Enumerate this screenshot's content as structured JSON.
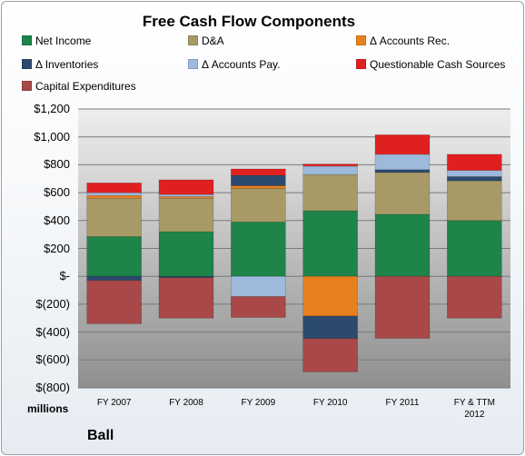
{
  "company": "Ball",
  "units": "millions",
  "chart_data": {
    "type": "bar",
    "stacked": true,
    "title": "Free Cash Flow Components",
    "categories": [
      "FY 2007",
      "FY 2008",
      "FY 2009",
      "FY 2010",
      "FY 2011",
      "FY & TTM 2012"
    ],
    "ylim": [
      -800,
      1200
    ],
    "yticks": [
      1200,
      1000,
      800,
      600,
      400,
      200,
      0,
      -200,
      -400,
      -600,
      -800
    ],
    "ytick_labels": [
      "$1,200",
      "$1,000",
      "$800",
      "$600",
      "$400",
      "$200",
      "$-",
      "$(200)",
      "$(400)",
      "$(600)",
      "$(800)"
    ],
    "grid": true,
    "legend": "top",
    "series": [
      {
        "name": "Net Income",
        "color": "#1e8449",
        "values": [
          285,
          320,
          390,
          470,
          445,
          400
        ]
      },
      {
        "name": "D&A",
        "color": "#a89a66",
        "values": [
          275,
          240,
          240,
          260,
          300,
          285
        ]
      },
      {
        "name": "Δ Accounts Rec.",
        "color": "#e8801f",
        "values": [
          20,
          12,
          20,
          -285,
          0,
          0
        ]
      },
      {
        "name": "Δ Inventories",
        "color": "#2c4a6e",
        "values": [
          -30,
          -10,
          75,
          -160,
          20,
          30
        ]
      },
      {
        "name": "Δ Accounts Pay.",
        "color": "#9db9dc",
        "values": [
          20,
          15,
          -145,
          60,
          110,
          45
        ]
      },
      {
        "name": "Questionable Cash Sources",
        "color": "#e02020",
        "values": [
          70,
          105,
          45,
          15,
          140,
          115
        ]
      },
      {
        "name": "Capital Expenditures",
        "color": "#a84848",
        "values": [
          -310,
          -290,
          -150,
          -240,
          -445,
          -300
        ]
      }
    ]
  }
}
